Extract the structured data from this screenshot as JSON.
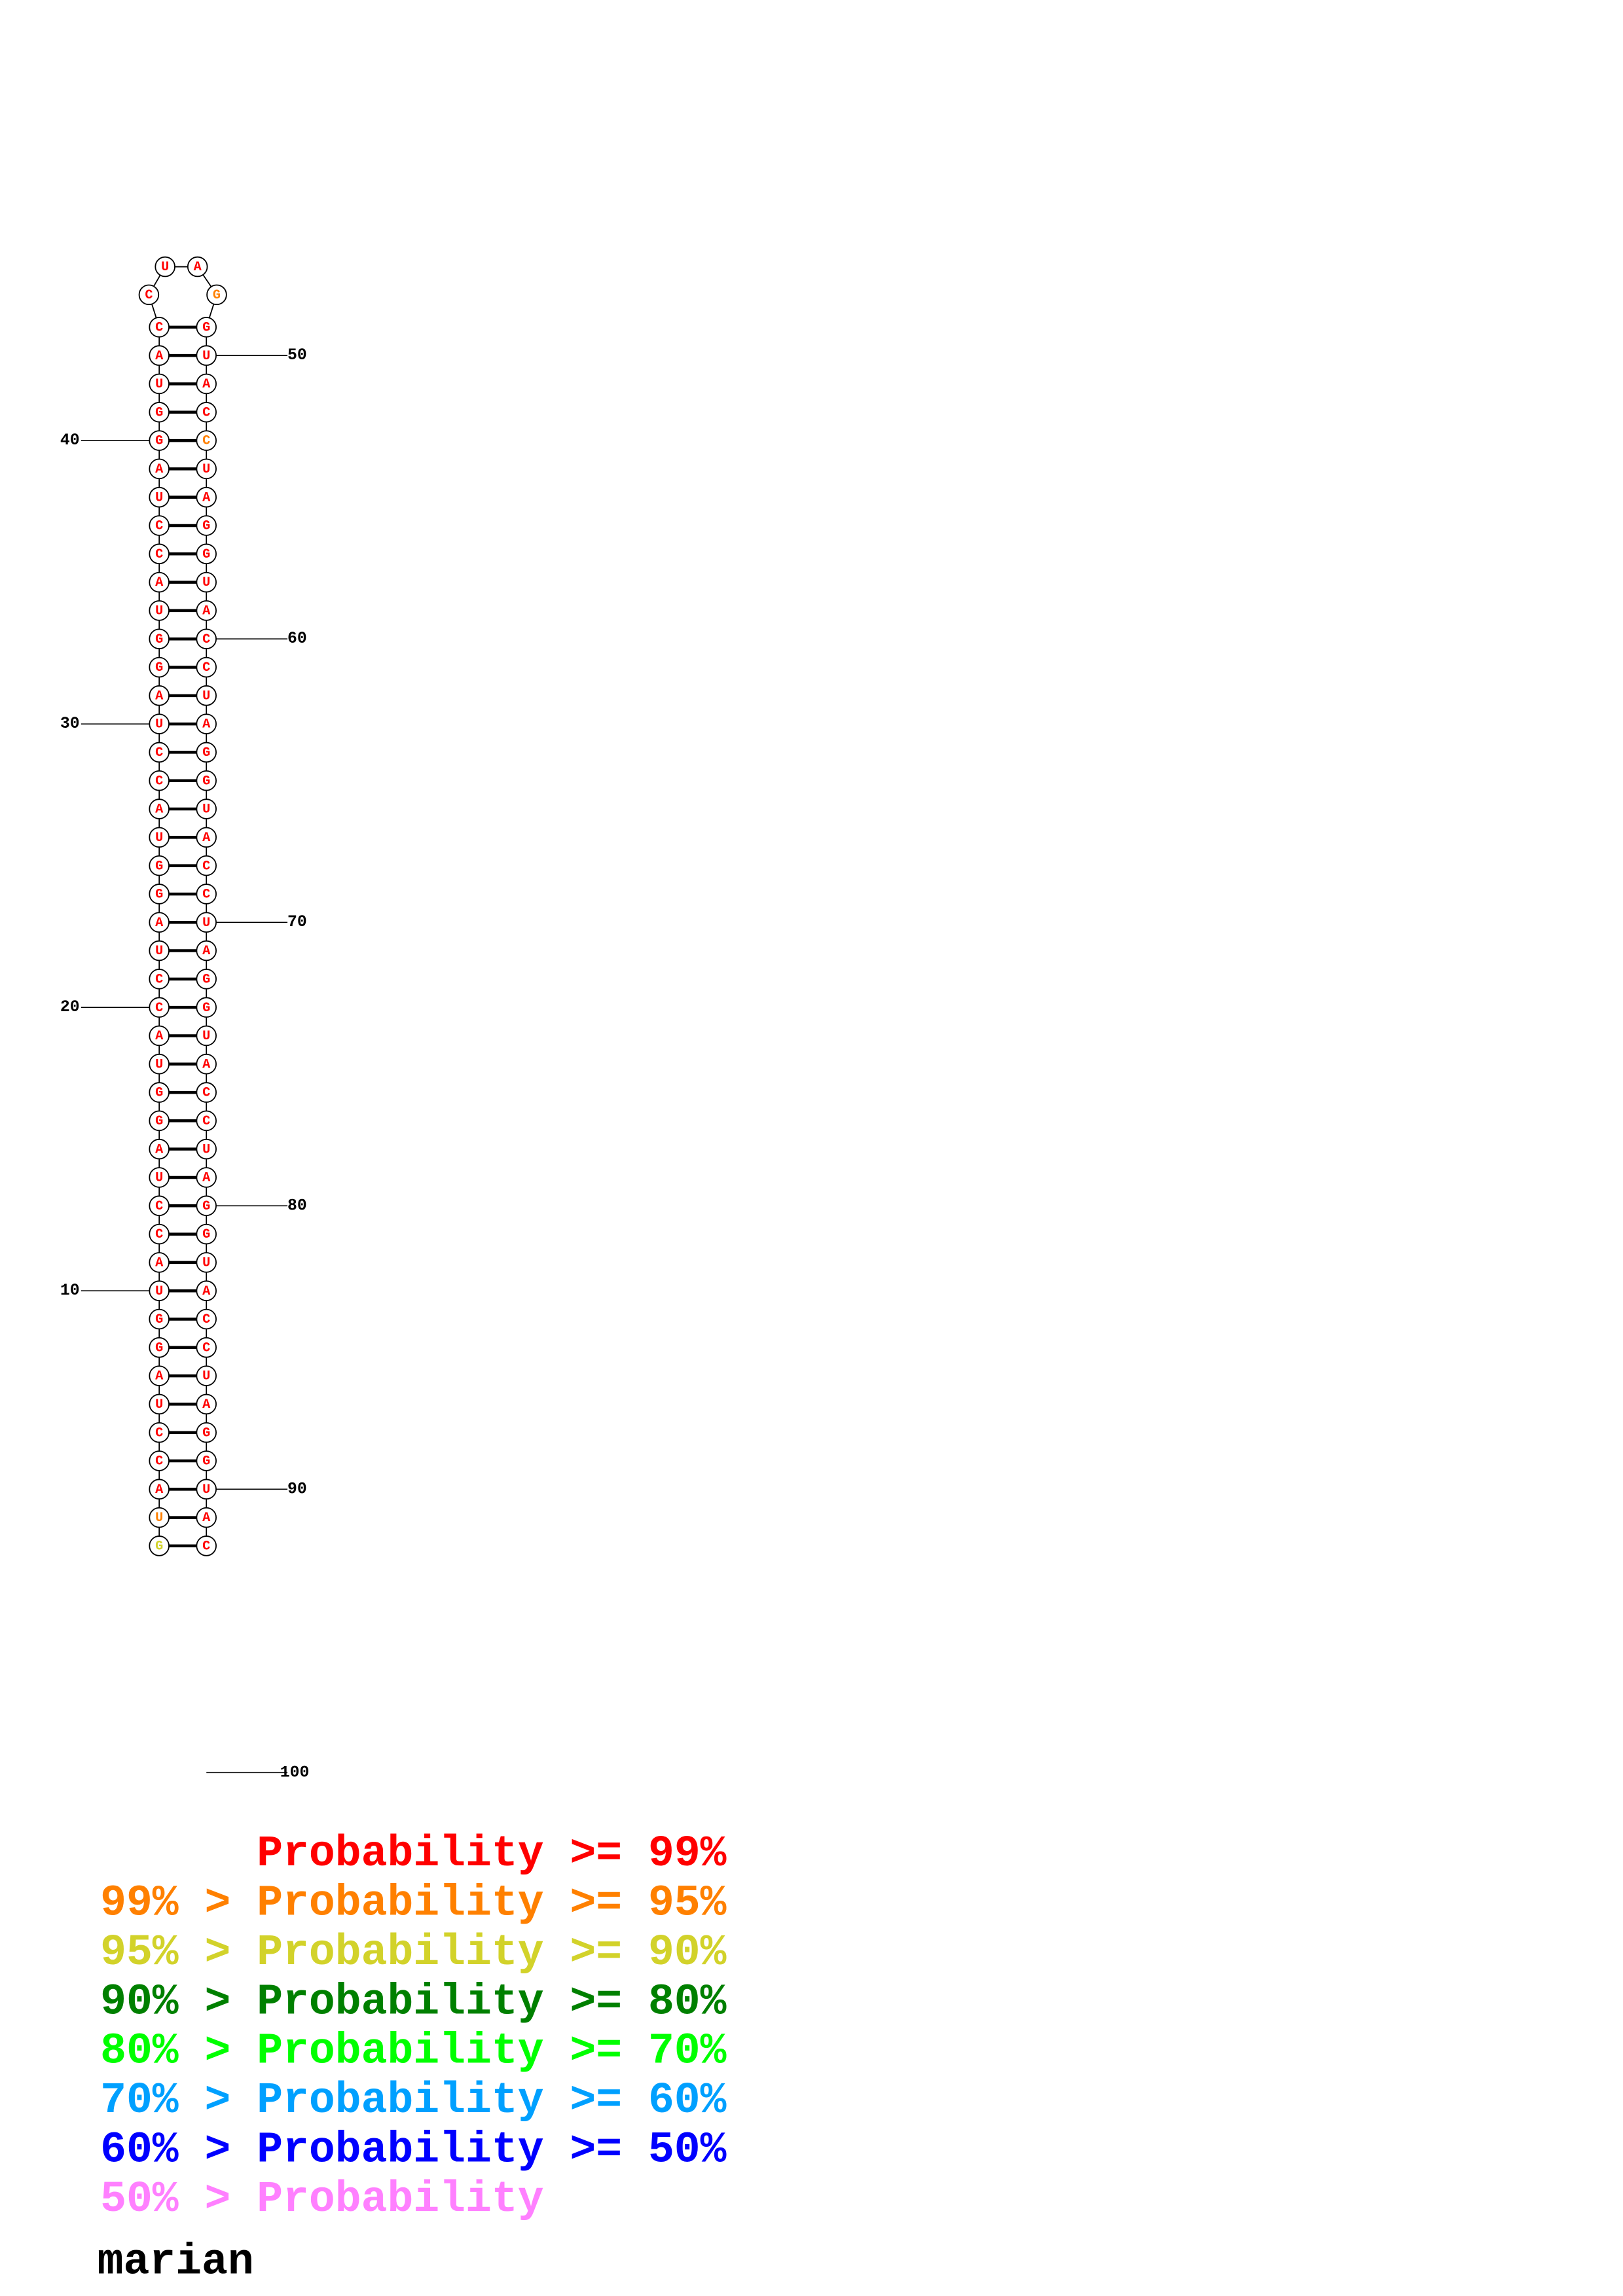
{
  "structure": {
    "bases": [
      "G",
      "U",
      "A",
      "C",
      "C",
      "U",
      "A",
      "G",
      "G",
      "U",
      "A",
      "C",
      "C",
      "U",
      "A",
      "G",
      "G",
      "U",
      "A",
      "C",
      "C",
      "U",
      "A",
      "G",
      "G",
      "U",
      "A",
      "C",
      "C",
      "U",
      "A",
      "G",
      "G",
      "U",
      "A",
      "C",
      "C",
      "U",
      "A",
      "G",
      "G",
      "U",
      "A",
      "C",
      "C",
      "U",
      "A",
      "G",
      "G",
      "U",
      "A",
      "C",
      "C",
      "U",
      "A",
      "G",
      "G",
      "U",
      "A",
      "C",
      "C",
      "U",
      "A",
      "G",
      "G",
      "U",
      "A",
      "C",
      "C",
      "U",
      "A",
      "G",
      "G",
      "U",
      "A",
      "C",
      "C",
      "U",
      "A",
      "G",
      "G",
      "U",
      "A",
      "C",
      "C",
      "U",
      "A",
      "G",
      "G",
      "U",
      "A",
      "C"
    ],
    "levels": [
      2,
      1,
      0,
      0,
      0,
      0,
      0,
      0,
      0,
      0,
      0,
      0,
      0,
      0,
      0,
      0,
      0,
      0,
      0,
      0,
      0,
      0,
      0,
      0,
      0,
      0,
      0,
      0,
      0,
      0,
      0,
      0,
      0,
      0,
      0,
      0,
      0,
      0,
      0,
      0,
      0,
      0,
      0,
      0,
      0,
      0,
      0,
      1,
      0,
      0,
      0,
      0,
      1,
      0,
      0,
      0,
      0,
      0,
      0,
      0,
      0,
      0,
      0,
      0,
      0,
      0,
      0,
      0,
      0,
      0,
      0,
      0,
      0,
      0,
      0,
      0,
      0,
      0,
      0,
      0,
      0,
      0,
      0,
      0,
      0,
      0,
      0,
      0,
      0,
      0,
      0,
      0,
      0,
      0,
      0,
      0,
      0,
      0,
      1,
      2
    ],
    "position_labels": [
      10,
      20,
      30,
      40,
      50,
      60,
      70,
      80,
      90,
      100
    ]
  },
  "legend": [
    {
      "text": "Probability >= 99%",
      "color": "#ff0000"
    },
    {
      "text": "99% > Probability >= 95%",
      "color": "#ff8000"
    },
    {
      "text": "95% > Probability >= 90%",
      "color": "#d2d22a"
    },
    {
      "text": "90% > Probability >= 80%",
      "color": "#008000"
    },
    {
      "text": "80% > Probability >= 70%",
      "color": "#00ff00"
    },
    {
      "text": "70% > Probability >= 60%",
      "color": "#00a0ff"
    },
    {
      "text": "60% > Probability >= 50%",
      "color": "#0000ff"
    },
    {
      "text": "50% > Probability",
      "color": "#ff80ff"
    }
  ],
  "footer": "marian"
}
